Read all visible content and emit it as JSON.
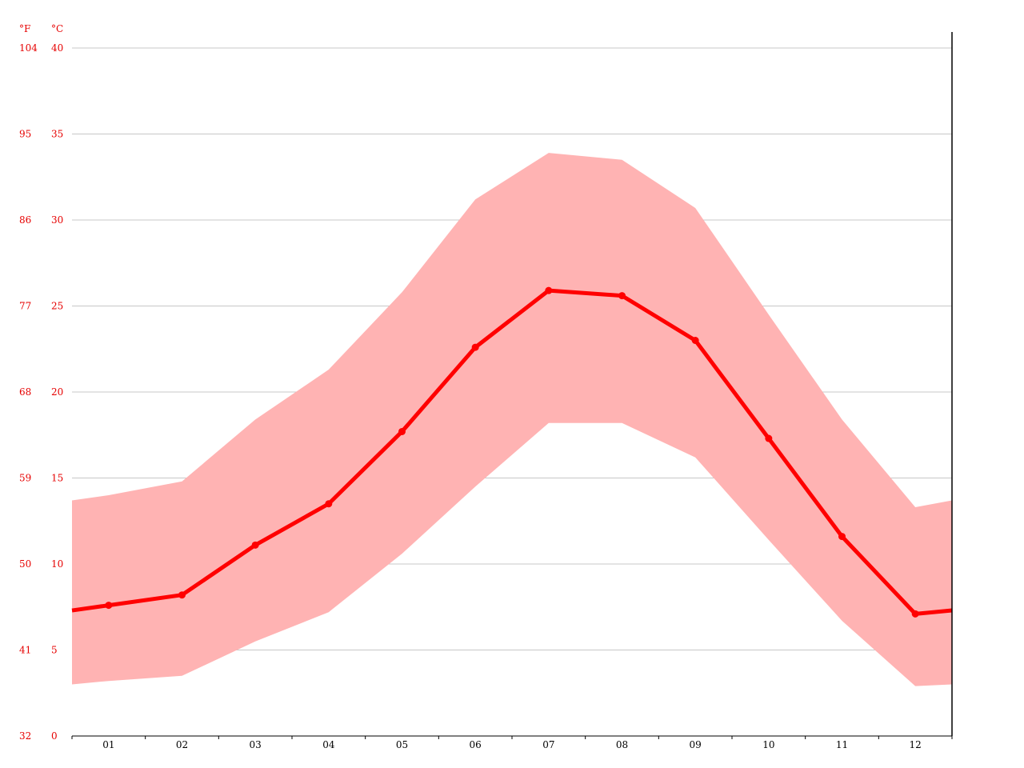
{
  "chart_data": {
    "type": "line",
    "title": "",
    "xlabel": "",
    "ylabel": "",
    "units": {
      "fahrenheit": "°F",
      "celsius": "°C"
    },
    "categories": [
      "01",
      "02",
      "03",
      "04",
      "05",
      "06",
      "07",
      "08",
      "09",
      "10",
      "11",
      "12"
    ],
    "y_celsius_ticks": [
      0,
      5,
      10,
      15,
      20,
      25,
      30,
      35,
      40
    ],
    "y_fahrenheit_ticks": [
      "32",
      "41",
      "50",
      "59",
      "68",
      "77",
      "86",
      "95",
      "104"
    ],
    "ylim": [
      0,
      40
    ],
    "grid": true,
    "series": [
      {
        "role": "average",
        "values": [
          7.6,
          8.2,
          11.1,
          13.5,
          17.7,
          22.6,
          25.9,
          25.6,
          23.0,
          17.3,
          11.6,
          7.1
        ]
      },
      {
        "role": "max",
        "values": [
          14.0,
          14.8,
          18.4,
          21.3,
          25.8,
          31.2,
          33.9,
          33.5,
          30.7,
          24.5,
          18.4,
          13.3
        ]
      },
      {
        "role": "min",
        "values": [
          3.2,
          3.5,
          5.5,
          7.2,
          10.6,
          14.5,
          18.2,
          18.2,
          16.2,
          11.4,
          6.7,
          2.9
        ]
      }
    ],
    "edge_values": {
      "average": {
        "start": 7.3,
        "end": 7.3
      },
      "max": {
        "start": 13.7,
        "end": 13.7
      },
      "min": {
        "start": 3.0,
        "end": 3.0
      }
    },
    "colors": {
      "line": "#ff0000",
      "band": "#ffb3b3",
      "grid": "#c8c8c8",
      "axis_labels": "#e60000",
      "x_labels": "#000000"
    }
  }
}
